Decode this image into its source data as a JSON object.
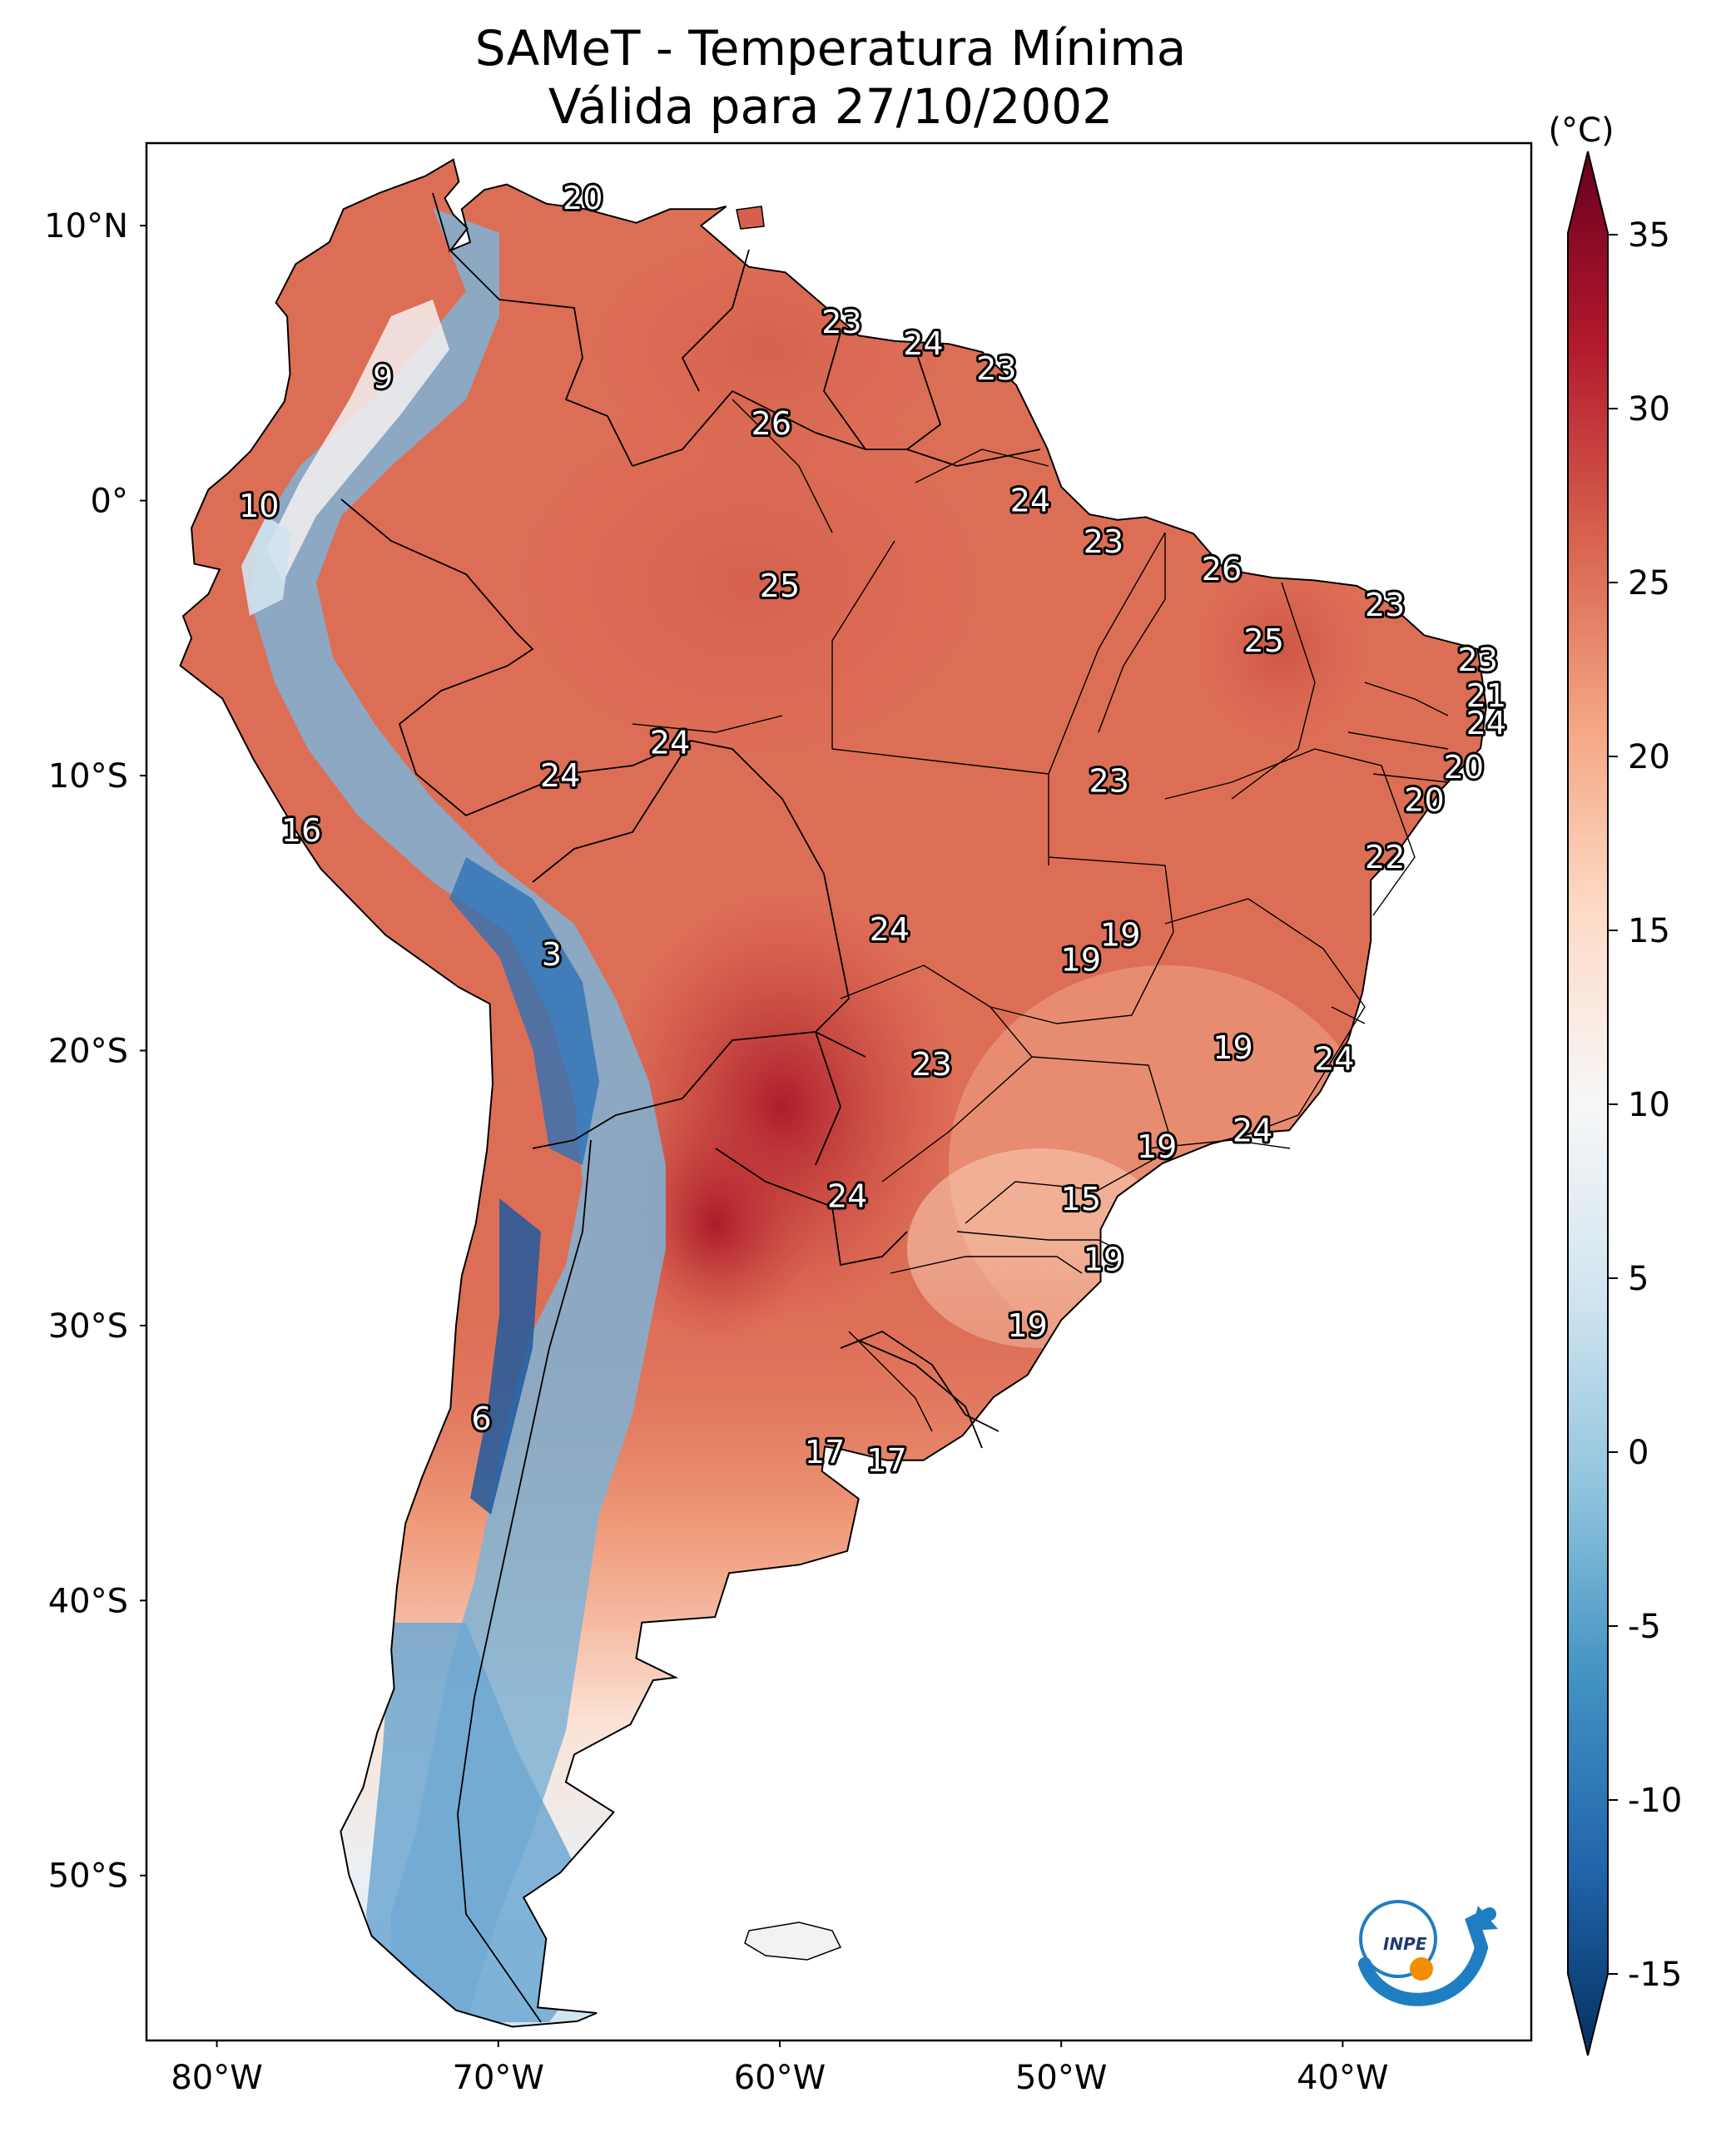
{
  "title": {
    "line1": "SAMeT - Temperatura Mínima",
    "line2": "Válida para 27/10/2002"
  },
  "lat_ticks": [
    "10°N",
    "0°",
    "10°S",
    "20°S",
    "30°S",
    "40°S",
    "50°S"
  ],
  "lon_ticks": [
    "80°W",
    "70°W",
    "60°W",
    "50°W",
    "40°W"
  ],
  "colorbar": {
    "unit": "(°C)",
    "ticks": [
      "35",
      "30",
      "25",
      "20",
      "15",
      "10",
      "5",
      "0",
      "-5",
      "-10",
      "-15"
    ],
    "colors": [
      "#053061",
      "#2166ac",
      "#4393c3",
      "#92c5de",
      "#d1e5f0",
      "#f7f7f7",
      "#fddbc7",
      "#f4a582",
      "#d6604d",
      "#b2182b",
      "#67001f"
    ]
  },
  "logo": {
    "text": "INPE"
  },
  "station_labels": [
    {
      "value": "20",
      "lat": 11.0,
      "lon": -67.0
    },
    {
      "value": "23",
      "lat": 6.5,
      "lon": -57.8
    },
    {
      "value": "24",
      "lat": 5.7,
      "lon": -54.9
    },
    {
      "value": "23",
      "lat": 4.8,
      "lon": -52.3
    },
    {
      "value": "9",
      "lat": 4.5,
      "lon": -74.1
    },
    {
      "value": "26",
      "lat": 2.8,
      "lon": -60.3
    },
    {
      "value": "24",
      "lat": 0.0,
      "lon": -51.1
    },
    {
      "value": "10",
      "lat": -0.2,
      "lon": -78.5
    },
    {
      "value": "23",
      "lat": -1.5,
      "lon": -48.5
    },
    {
      "value": "26",
      "lat": -2.5,
      "lon": -44.3
    },
    {
      "value": "25",
      "lat": -3.1,
      "lon": -60.0
    },
    {
      "value": "23",
      "lat": -3.8,
      "lon": -38.5
    },
    {
      "value": "25",
      "lat": -5.1,
      "lon": -42.8
    },
    {
      "value": "23",
      "lat": -5.8,
      "lon": -35.2
    },
    {
      "value": "21",
      "lat": -7.1,
      "lon": -34.9
    },
    {
      "value": "24",
      "lat": -8.1,
      "lon": -34.9
    },
    {
      "value": "24",
      "lat": -8.8,
      "lon": -63.9
    },
    {
      "value": "24",
      "lat": -10.0,
      "lon": -67.8
    },
    {
      "value": "20",
      "lat": -9.7,
      "lon": -35.7
    },
    {
      "value": "23",
      "lat": -10.2,
      "lon": -48.3
    },
    {
      "value": "20",
      "lat": -10.9,
      "lon": -37.1
    },
    {
      "value": "16",
      "lat": -12.0,
      "lon": -77.0
    },
    {
      "value": "22",
      "lat": -12.97,
      "lon": -38.5
    },
    {
      "value": "24",
      "lat": -15.6,
      "lon": -56.1
    },
    {
      "value": "19",
      "lat": -15.8,
      "lon": -47.9
    },
    {
      "value": "19",
      "lat": -16.7,
      "lon": -49.3
    },
    {
      "value": "3",
      "lat": -16.5,
      "lon": -68.1
    },
    {
      "value": "19",
      "lat": -19.9,
      "lon": -43.9
    },
    {
      "value": "24",
      "lat": -20.3,
      "lon": -40.3
    },
    {
      "value": "23",
      "lat": -20.5,
      "lon": -54.6
    },
    {
      "value": "24",
      "lat": -22.9,
      "lon": -43.2
    },
    {
      "value": "19",
      "lat": -23.5,
      "lon": -46.6
    },
    {
      "value": "24",
      "lat": -25.3,
      "lon": -57.6
    },
    {
      "value": "15",
      "lat": -25.4,
      "lon": -49.3
    },
    {
      "value": "19",
      "lat": -27.6,
      "lon": -48.5
    },
    {
      "value": "19",
      "lat": -30.0,
      "lon": -51.2
    },
    {
      "value": "6",
      "lat": -33.4,
      "lon": -70.6
    },
    {
      "value": "17",
      "lat": -34.6,
      "lon": -58.4
    },
    {
      "value": "17",
      "lat": -34.9,
      "lon": -56.2
    }
  ]
}
